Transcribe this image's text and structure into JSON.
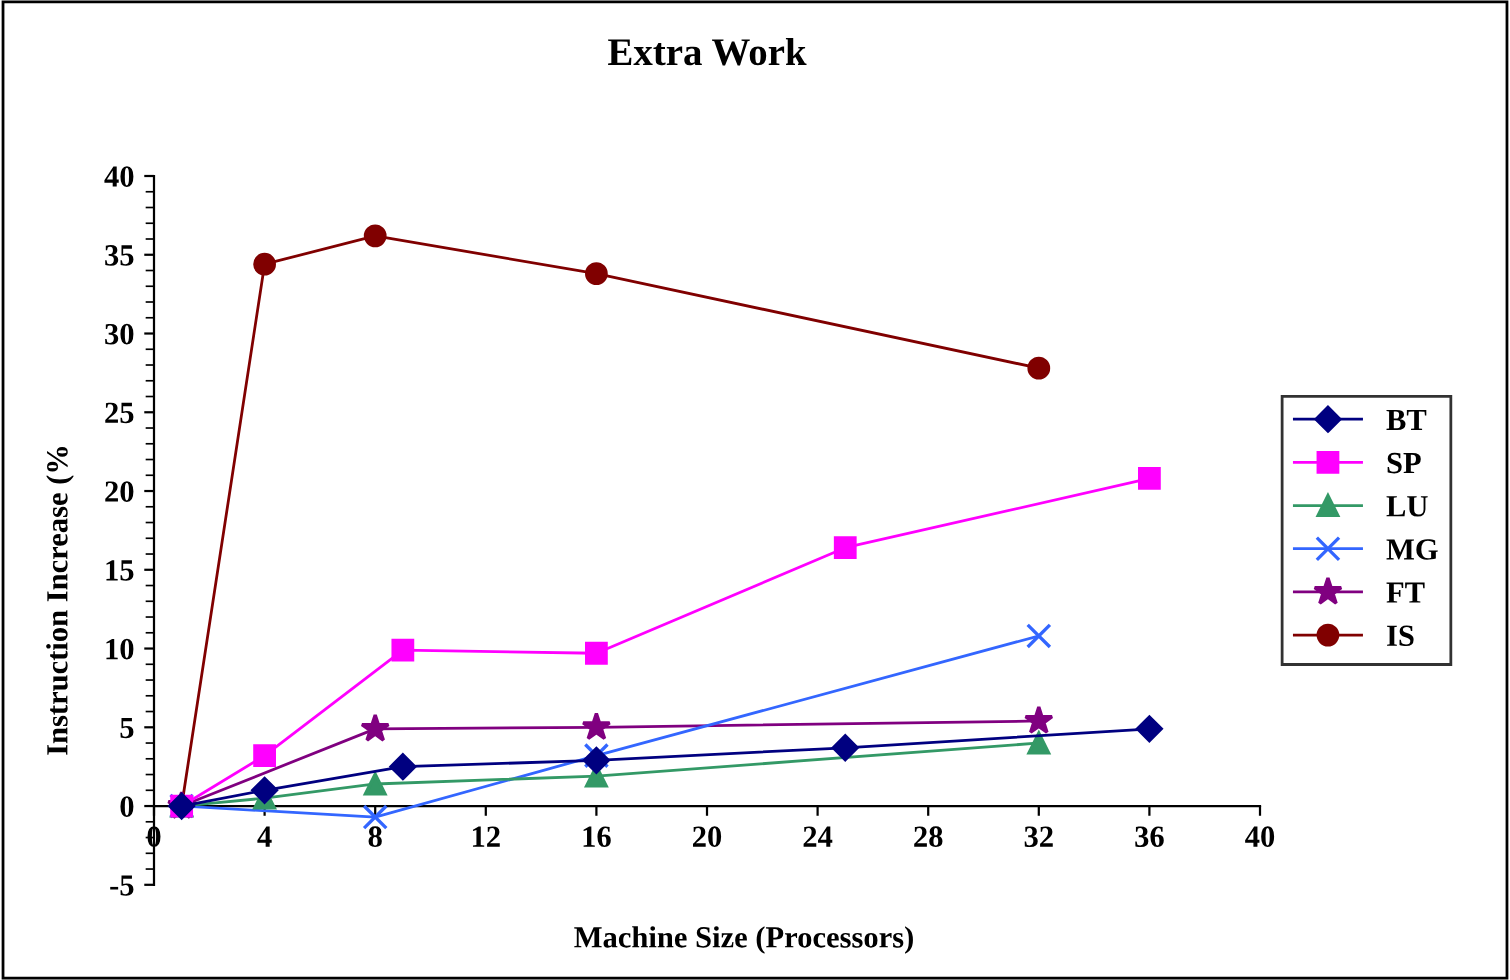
{
  "chart_data": {
    "type": "line",
    "title": "Extra Work",
    "xlabel": "Machine Size (Processors)",
    "ylabel": "Instruction Increase (%",
    "xlim": [
      0,
      40
    ],
    "xticks": [
      0,
      4,
      8,
      12,
      16,
      20,
      24,
      28,
      32,
      36,
      40
    ],
    "ylim": [
      -5,
      40
    ],
    "yticks": [
      -5,
      0,
      5,
      10,
      15,
      20,
      25,
      30,
      35,
      40
    ],
    "grid": false,
    "legend": "right",
    "series": [
      {
        "name": "BT",
        "color": "#000080",
        "marker": "diamond",
        "x": [
          1,
          4,
          9,
          16,
          25,
          36
        ],
        "values": [
          0,
          1.0,
          2.5,
          2.9,
          3.7,
          4.9
        ]
      },
      {
        "name": "SP",
        "color": "#ff00ff",
        "marker": "square",
        "x": [
          1,
          4,
          9,
          16,
          25,
          36
        ],
        "values": [
          0,
          3.2,
          9.9,
          9.7,
          16.4,
          20.8
        ]
      },
      {
        "name": "LU",
        "color": "#339966",
        "marker": "triangle",
        "x": [
          1,
          4,
          8,
          16,
          32
        ],
        "values": [
          0,
          0.5,
          1.4,
          1.9,
          4.0
        ]
      },
      {
        "name": "MG",
        "color": "#3366ff",
        "marker": "cross",
        "x": [
          1,
          8,
          16,
          32
        ],
        "values": [
          0,
          -0.7,
          3.2,
          10.8
        ]
      },
      {
        "name": "FT",
        "color": "#800080",
        "marker": "star",
        "x": [
          1,
          8,
          16,
          32
        ],
        "values": [
          0,
          4.9,
          5.0,
          5.4
        ]
      },
      {
        "name": "IS",
        "color": "#800000",
        "marker": "circle",
        "x": [
          1,
          4,
          8,
          16,
          32
        ],
        "values": [
          0,
          34.4,
          36.2,
          33.8,
          27.8
        ]
      }
    ]
  }
}
